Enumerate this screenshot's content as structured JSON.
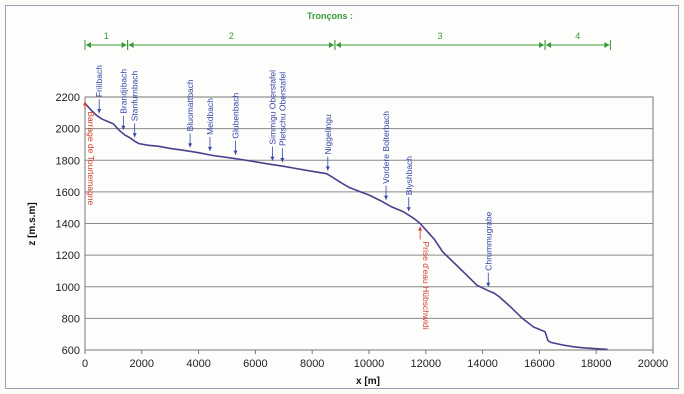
{
  "chart_data": {
    "type": "line",
    "title": "Tronçons :",
    "xlabel": "x [m]",
    "ylabel": "z [m.s.m]",
    "xlim": [
      0,
      20000
    ],
    "ylim": [
      600,
      2200
    ],
    "xticks": [
      0,
      2000,
      4000,
      6000,
      8000,
      10000,
      12000,
      14000,
      16000,
      18000,
      20000
    ],
    "yticks": [
      600,
      800,
      1000,
      1200,
      1400,
      1600,
      1800,
      2000,
      2200
    ],
    "grid": "horizontal",
    "line_color": "#4b3f8f",
    "series": [
      {
        "x": [
          0,
          200,
          400,
          600,
          800,
          1000,
          1200,
          1400,
          1600,
          1750,
          1900,
          2200,
          2600,
          3000,
          3500,
          4000,
          4500,
          5000,
          5500,
          6000,
          6500,
          7000,
          7500,
          8000,
          8500,
          8700,
          9000,
          9300,
          9700,
          10000,
          10400,
          10800,
          11200,
          11600,
          11800,
          12000,
          12300,
          12600,
          13000,
          13400,
          13800,
          14200,
          14400,
          14600,
          15000,
          15400,
          15800,
          16000,
          16200,
          16300,
          16400,
          16800,
          17200,
          17600,
          18000,
          18400
        ],
        "y": [
          2160,
          2120,
          2085,
          2060,
          2045,
          2030,
          1990,
          1960,
          1940,
          1920,
          1905,
          1895,
          1888,
          1875,
          1862,
          1848,
          1830,
          1818,
          1805,
          1790,
          1775,
          1762,
          1745,
          1730,
          1715,
          1695,
          1660,
          1628,
          1600,
          1580,
          1545,
          1505,
          1475,
          1430,
          1400,
          1360,
          1300,
          1220,
          1150,
          1080,
          1010,
          975,
          960,
          935,
          870,
          800,
          745,
          730,
          715,
          660,
          648,
          632,
          620,
          613,
          608,
          604
        ]
      }
    ],
    "sections": [
      {
        "label": "1",
        "from": 0,
        "to": 1500
      },
      {
        "label": "2",
        "from": 1500,
        "to": 8800
      },
      {
        "label": "3",
        "from": 8800,
        "to": 16200
      },
      {
        "label": "4",
        "from": 16200,
        "to": 18500
      }
    ],
    "annotations": [
      {
        "text": "Frilibach",
        "x": 500,
        "color": "#3344aa"
      },
      {
        "text": "Brandjibach",
        "x": 1350,
        "color": "#3344aa"
      },
      {
        "text": "Stanfurnbach",
        "x": 1750,
        "color": "#3344aa"
      },
      {
        "text": "Bluomattbach",
        "x": 3700,
        "color": "#3344aa"
      },
      {
        "text": "Meidbach",
        "x": 4400,
        "color": "#3344aa"
      },
      {
        "text": "Glubenbach",
        "x": 5300,
        "color": "#3344aa"
      },
      {
        "text": "Simmigu Oberstafel",
        "x": 6600,
        "color": "#3344aa"
      },
      {
        "text": "Pletschu Oberstafel",
        "x": 6950,
        "color": "#3344aa"
      },
      {
        "text": "Niggelingu",
        "x": 8550,
        "color": "#3344aa"
      },
      {
        "text": "Vordere Bolterbach",
        "x": 10600,
        "color": "#3344aa"
      },
      {
        "text": "Blyshbach",
        "x": 11400,
        "color": "#3344aa"
      },
      {
        "text": "Chrummugrabe",
        "x": 14200,
        "color": "#3344aa"
      },
      {
        "text": "Barrage de Tourtemagne",
        "x": 0,
        "color": "#d23a2a"
      },
      {
        "text": "Prise d'eau Hübschwidi",
        "x": 11800,
        "color": "#d23a2a"
      }
    ]
  }
}
